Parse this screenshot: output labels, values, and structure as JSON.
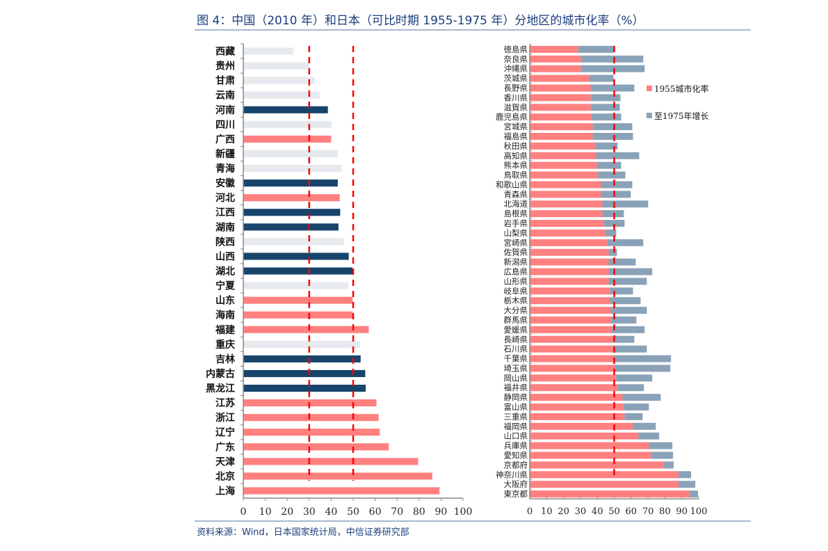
{
  "title": "图 4：中国（2010 年）和日本（可比时期 1955-1975 年）分地区的城市化率（%）",
  "source": "资料来源：Wind，日本国家统计局，中信证券研究部",
  "colors": {
    "china_gray": "#e6e9ee",
    "china_dark": "#17446b",
    "china_pink": "#ff8080",
    "japan_1955": "#ff8080",
    "japan_growth": "#8aa2b8",
    "reference_line": "#ff0000",
    "title_text": "#1a3d7c"
  },
  "chart_data": [
    {
      "type": "bar",
      "orientation": "horizontal",
      "name": "China 2010 urbanization by province",
      "xlim": [
        0,
        100
      ],
      "xticks": [
        0,
        10,
        20,
        30,
        40,
        50,
        60,
        70,
        80,
        90,
        100
      ],
      "reference_lines": [
        30,
        50
      ],
      "categories": [
        "西藏",
        "贵州",
        "甘肃",
        "云南",
        "河南",
        "四川",
        "广西",
        "新疆",
        "青海",
        "安徽",
        "河北",
        "江西",
        "湖南",
        "陕西",
        "山西",
        "湖北",
        "宁夏",
        "山东",
        "海南",
        "福建",
        "重庆",
        "吉林",
        "内蒙古",
        "黑龙江",
        "江苏",
        "浙江",
        "辽宁",
        "广东",
        "天津",
        "北京",
        "上海"
      ],
      "values": [
        22.7,
        29.9,
        32.7,
        34.7,
        38.5,
        40.2,
        40.0,
        43.0,
        44.7,
        43.0,
        43.9,
        44.1,
        43.3,
        45.8,
        48.0,
        49.7,
        47.9,
        49.7,
        49.8,
        57.1,
        53.0,
        53.4,
        55.5,
        55.7,
        60.6,
        61.6,
        62.1,
        66.2,
        79.6,
        86.0,
        89.3
      ],
      "groups": [
        "gray",
        "gray",
        "gray",
        "gray",
        "dark",
        "gray",
        "pink",
        "gray",
        "gray",
        "dark",
        "pink",
        "dark",
        "dark",
        "gray",
        "dark",
        "dark",
        "gray",
        "pink",
        "pink",
        "pink",
        "gray",
        "dark",
        "dark",
        "dark",
        "pink",
        "pink",
        "pink",
        "pink",
        "pink",
        "pink",
        "pink"
      ]
    },
    {
      "type": "bar",
      "orientation": "horizontal",
      "stacked": true,
      "name": "Japan 1955-1975 urbanization by prefecture",
      "xlim": [
        0,
        100
      ],
      "xticks": [
        0,
        10,
        20,
        30,
        40,
        50,
        60,
        70,
        80,
        90,
        100
      ],
      "reference_lines": [
        50
      ],
      "legend": [
        "1955城市化率",
        "至1975年增长"
      ],
      "legend_position": "right",
      "categories": [
        "徳島県",
        "奈良県",
        "沖縄県",
        "茨城県",
        "長野県",
        "香川県",
        "滋賀県",
        "鹿児島県",
        "宮城県",
        "福島県",
        "秋田県",
        "高知県",
        "熊本県",
        "鳥取県",
        "和歌山県",
        "青森県",
        "北海道",
        "島根県",
        "岩手県",
        "山梨県",
        "宮崎県",
        "佐賀県",
        "新潟県",
        "広島県",
        "山形県",
        "岐阜県",
        "栃木県",
        "大分県",
        "群馬県",
        "愛媛県",
        "長崎県",
        "石川県",
        "千葉県",
        "埼玉県",
        "岡山県",
        "福井県",
        "静岡県",
        "富山県",
        "三重県",
        "福岡県",
        "山口県",
        "兵庫県",
        "愛知県",
        "京都府",
        "神奈川県",
        "大阪府",
        "東京都"
      ],
      "series": [
        {
          "name": "1955城市化率",
          "values": [
            28.7,
            30.3,
            30.3,
            35.2,
            36.1,
            36.1,
            36.1,
            36.5,
            37.3,
            37.3,
            38.9,
            39.3,
            39.8,
            40.2,
            42.2,
            42.2,
            43.0,
            43.0,
            43.9,
            44.7,
            45.9,
            46.7,
            46.7,
            46.7,
            46.7,
            47.5,
            47.5,
            48.0,
            48.0,
            48.4,
            49.2,
            49.2,
            50.0,
            50.4,
            51.2,
            52.0,
            54.9,
            55.7,
            56.1,
            61.1,
            64.3,
            70.5,
            71.7,
            79.5,
            88.1,
            88.1,
            94.7
          ]
        },
        {
          "name": "至1975年增长",
          "values": [
            20.9,
            36.9,
            37.7,
            14.4,
            25.8,
            17.6,
            17.2,
            17.6,
            23.4,
            23.8,
            13.1,
            25.5,
            14.3,
            16.4,
            18.5,
            17.6,
            27.1,
            12.7,
            12.2,
            6.5,
            21.3,
            4.9,
            16.0,
            25.8,
            22.6,
            13.6,
            18.1,
            21.3,
            15.1,
            19.6,
            12.7,
            20.1,
            33.6,
            32.8,
            21.3,
            15.6,
            22.6,
            14.8,
            10.7,
            13.5,
            12.3,
            13.9,
            13.1,
            5.7,
            7.4,
            9.9,
            4.9
          ]
        }
      ]
    }
  ]
}
